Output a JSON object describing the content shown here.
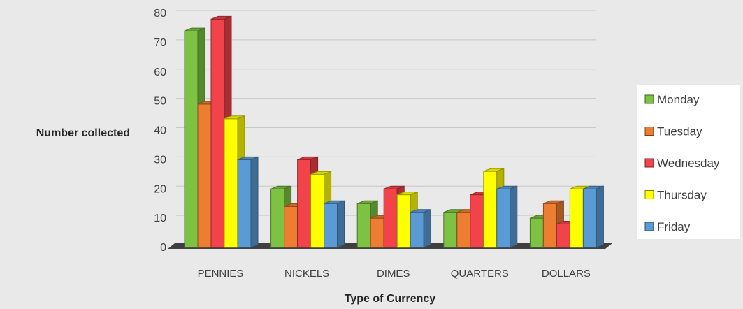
{
  "chart_data": {
    "type": "bar",
    "categories": [
      "PENNIES",
      "NICKELS",
      "DIMES",
      "QUARTERS",
      "DOLLARS"
    ],
    "series": [
      {
        "name": "Monday",
        "color": "#7dc242",
        "values": [
          74,
          20,
          15,
          12,
          10
        ]
      },
      {
        "name": "Tuesday",
        "color": "#ed7d31",
        "values": [
          49,
          14,
          10,
          12,
          15
        ]
      },
      {
        "name": "Wednesday",
        "color": "#f2424a",
        "values": [
          78,
          30,
          20,
          18,
          8
        ]
      },
      {
        "name": "Thursday",
        "color": "#ffff00",
        "values": [
          44,
          25,
          18,
          26,
          20
        ]
      },
      {
        "name": "Friday",
        "color": "#5b9bd5",
        "values": [
          30,
          15,
          12,
          20,
          20
        ]
      }
    ],
    "xlabel": "Type of Currency",
    "ylabel": "Number collected",
    "ylim": [
      0,
      80
    ],
    "yticks": [
      0,
      10,
      20,
      30,
      40,
      50,
      60,
      70,
      80
    ],
    "grid": true,
    "legend_position": "right",
    "style": "3d-clustered-column"
  }
}
